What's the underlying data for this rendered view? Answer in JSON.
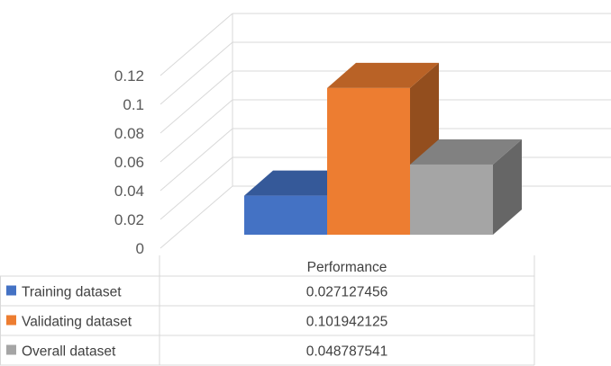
{
  "chart_data": {
    "type": "bar",
    "style": "3d-clustered-column-with-data-table",
    "categories": [
      "Performance"
    ],
    "series": [
      {
        "name": "Training dataset",
        "values": [
          0.027127456
        ],
        "value_label": "0.027127456",
        "color": "#4472C4"
      },
      {
        "name": "Validating dataset",
        "values": [
          0.101942125
        ],
        "value_label": "0.101942125",
        "color": "#ED7D31"
      },
      {
        "name": "Overall dataset",
        "values": [
          0.048787541
        ],
        "value_label": "0.048787541",
        "color": "#A5A5A5"
      }
    ],
    "y_ticks": [
      "0",
      "0.02",
      "0.04",
      "0.06",
      "0.08",
      "0.1",
      "0.12"
    ],
    "ylim": [
      0,
      0.12
    ],
    "grid": true,
    "legend": "data-table-bottom",
    "title": "",
    "xlabel": "",
    "ylabel": ""
  }
}
